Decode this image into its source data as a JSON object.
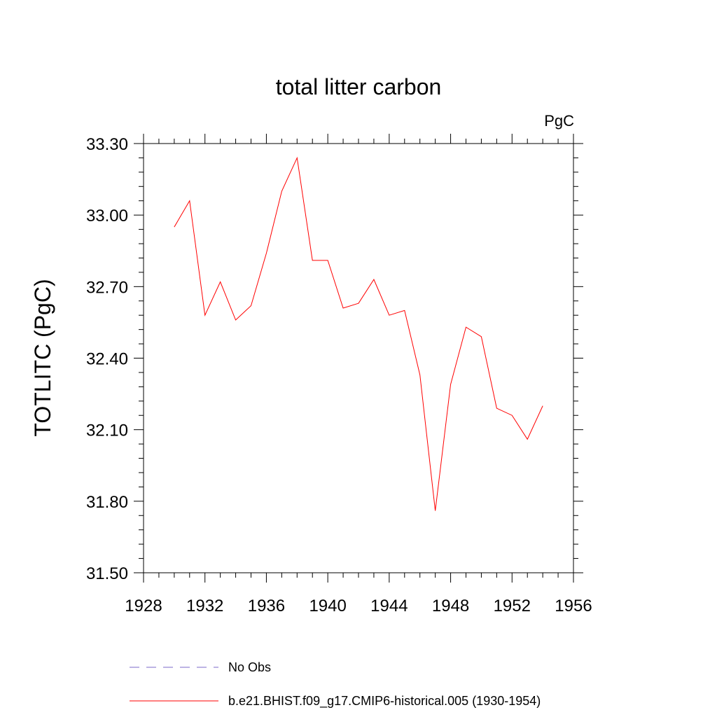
{
  "chart_data": {
    "type": "line",
    "title": "total litter carbon",
    "units_label": "PgC",
    "xlabel": "",
    "ylabel": "TOTLITC  (PgC)",
    "xlim": [
      1928,
      1956
    ],
    "ylim": [
      31.5,
      33.3
    ],
    "x_ticks": [
      1928,
      1932,
      1936,
      1940,
      1944,
      1948,
      1952,
      1956
    ],
    "x_tick_labels": [
      "1928",
      "1932",
      "1936",
      "1940",
      "1944",
      "1948",
      "1952",
      "1956"
    ],
    "y_ticks": [
      31.5,
      31.8,
      32.1,
      32.4,
      32.7,
      33.0,
      33.3
    ],
    "y_tick_labels": [
      "31.50",
      "31.80",
      "32.10",
      "32.40",
      "32.70",
      "33.00",
      "33.30"
    ],
    "grid": false,
    "legend_position": "bottom",
    "series": [
      {
        "name": "No Obs",
        "color": "#7b68c8",
        "dash": "dashed",
        "x": [],
        "y": []
      },
      {
        "name": "b.e21.BHIST.f09_g17.CMIP6-historical.005 (1930-1954)",
        "color": "#ff0000",
        "dash": "solid",
        "x": [
          1930,
          1931,
          1932,
          1933,
          1934,
          1935,
          1936,
          1937,
          1938,
          1939,
          1940,
          1941,
          1942,
          1943,
          1944,
          1945,
          1946,
          1947,
          1948,
          1949,
          1950,
          1951,
          1952,
          1953,
          1954
        ],
        "y": [
          32.95,
          33.06,
          32.58,
          32.72,
          32.56,
          32.62,
          32.84,
          33.1,
          33.24,
          32.81,
          32.81,
          32.61,
          32.63,
          32.73,
          32.58,
          32.6,
          32.33,
          31.76,
          32.29,
          32.53,
          32.49,
          32.19,
          32.16,
          32.06,
          32.2
        ]
      }
    ]
  }
}
